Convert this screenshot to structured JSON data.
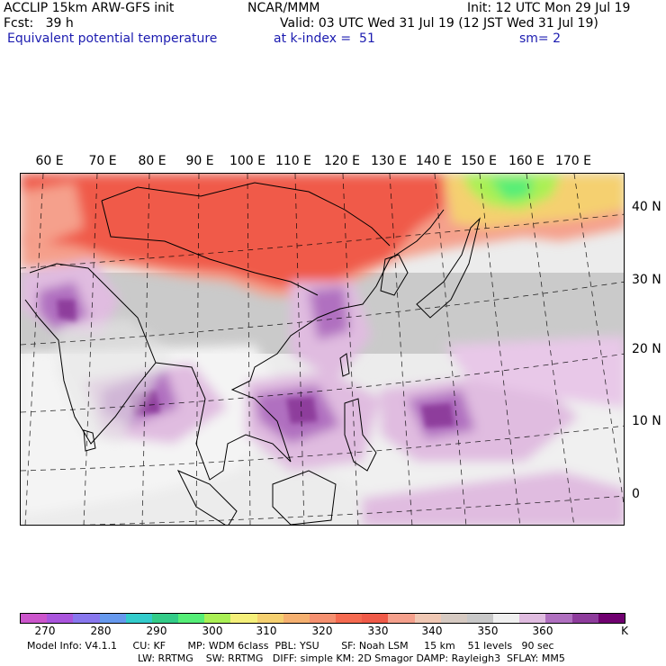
{
  "header": {
    "line1_left": "ACCLIP 15km ARW-GFS init",
    "line1_mid": "NCAR/MMM",
    "line1_right": "Init: 12 UTC Mon 29 Jul 19",
    "line2_left": "Fcst:   39 h",
    "line2_right": "Valid: 03 UTC Wed 31 Jul 19 (12 JST Wed 31 Jul 19)",
    "line3_left": "Equivalent potential temperature",
    "line3_mid": "at k-index =  51",
    "line3_right": "sm= 2"
  },
  "lon_labels": [
    "60 E",
    "70 E",
    "80 E",
    "90 E",
    "100 E",
    "110 E",
    "120 E",
    "130 E",
    "140 E",
    "150 E",
    "160 E",
    "170 E"
  ],
  "lat_labels": [
    "40 N",
    "30 N",
    "20 N",
    "10 N",
    "0"
  ],
  "colorbar": {
    "colors": [
      "#cc55cc",
      "#aa55dd",
      "#8877ee",
      "#6699ee",
      "#33cccc",
      "#33cc88",
      "#55ee77",
      "#aaf055",
      "#f5f07a",
      "#f5d070",
      "#f5b070",
      "#f59070",
      "#f56a50",
      "#f05a48",
      "#f5a08c",
      "#f0c8b4",
      "#d6cac2",
      "#c8c8c8",
      "#f0f0f0",
      "#e0bce0",
      "#b070c0",
      "#8e3c9c",
      "#700070"
    ],
    "labels": [
      "270",
      "280",
      "290",
      "300",
      "310",
      "320",
      "330",
      "340",
      "350",
      "360"
    ],
    "unit": "K"
  },
  "footer": {
    "line1": "Model Info: V4.1.1     CU: KF       MP: WDM 6class  PBL: YSU       SF: Noah LSM     15 km    51 levels   90 sec",
    "line2": "LW: RRTMG    SW: RRTMG   DIFF: simple KM: 2D Smagor DAMP: Rayleigh3  SFLAY: MM5"
  }
}
